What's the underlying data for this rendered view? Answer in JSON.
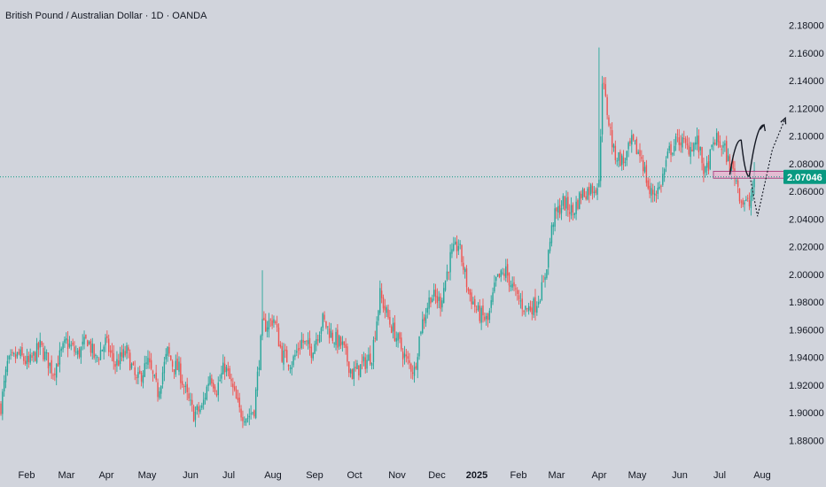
{
  "header": {
    "symbol_title": "British Pound / Australian Dollar · 1D · OANDA"
  },
  "colors": {
    "background": "#d1d4dc",
    "up_candle": "#26a69a",
    "down_candle": "#ef5350",
    "last_price": "#089981",
    "zone_fill": "#e8b4cf",
    "zone_border": "#b04a86",
    "arrow": "#131722"
  },
  "chart_data": {
    "type": "candlestick",
    "y_axis": {
      "min": 1.87,
      "max": 2.19,
      "ticks": [
        "2.18000",
        "2.16000",
        "2.14000",
        "2.12000",
        "2.10000",
        "2.08000",
        "2.06000",
        "2.04000",
        "2.02000",
        "2.00000",
        "1.98000",
        "1.96000",
        "1.94000",
        "1.92000",
        "1.90000",
        "1.88000"
      ]
    },
    "x_axis": {
      "ticks": [
        {
          "label": "Feb",
          "bold": false
        },
        {
          "label": "Mar",
          "bold": false
        },
        {
          "label": "Apr",
          "bold": false
        },
        {
          "label": "May",
          "bold": false
        },
        {
          "label": "Jun",
          "bold": false
        },
        {
          "label": "Jul",
          "bold": false
        },
        {
          "label": "Aug",
          "bold": false
        },
        {
          "label": "Sep",
          "bold": false
        },
        {
          "label": "Oct",
          "bold": false
        },
        {
          "label": "Nov",
          "bold": false
        },
        {
          "label": "Dec",
          "bold": false
        },
        {
          "label": "2025",
          "bold": true
        },
        {
          "label": "Feb",
          "bold": false
        },
        {
          "label": "Mar",
          "bold": false
        },
        {
          "label": "Apr",
          "bold": false
        },
        {
          "label": "May",
          "bold": false
        },
        {
          "label": "Jun",
          "bold": false
        },
        {
          "label": "Jul",
          "bold": false
        },
        {
          "label": "Aug",
          "bold": false
        }
      ]
    },
    "last_price": 2.07046,
    "last_price_label": "2.07046",
    "close_path": [
      [
        0,
        1.905
      ],
      [
        4,
        1.935
      ],
      [
        11,
        1.942
      ],
      [
        17,
        1.935
      ],
      [
        24,
        1.948
      ],
      [
        32,
        1.93
      ],
      [
        40,
        1.951
      ],
      [
        47,
        1.942
      ],
      [
        53,
        1.953
      ],
      [
        58,
        1.938
      ],
      [
        64,
        1.951
      ],
      [
        70,
        1.935
      ],
      [
        77,
        1.944
      ],
      [
        83,
        1.922
      ],
      [
        90,
        1.936
      ],
      [
        96,
        1.915
      ],
      [
        102,
        1.944
      ],
      [
        105,
        1.935
      ],
      [
        109,
        1.931
      ],
      [
        114,
        1.911
      ],
      [
        118,
        1.899
      ],
      [
        123,
        1.903
      ],
      [
        128,
        1.928
      ],
      [
        132,
        1.917
      ],
      [
        137,
        1.934
      ],
      [
        141,
        1.92
      ],
      [
        146,
        1.901
      ],
      [
        151,
        1.897
      ],
      [
        155,
        1.903
      ],
      [
        160,
        1.962
      ],
      [
        164,
        1.965
      ],
      [
        167,
        1.968
      ],
      [
        172,
        1.942
      ],
      [
        178,
        1.936
      ],
      [
        184,
        1.952
      ],
      [
        190,
        1.945
      ],
      [
        197,
        1.967
      ],
      [
        203,
        1.955
      ],
      [
        209,
        1.948
      ],
      [
        215,
        1.928
      ],
      [
        221,
        1.934
      ],
      [
        227,
        1.942
      ],
      [
        232,
        1.985
      ],
      [
        238,
        1.965
      ],
      [
        243,
        1.952
      ],
      [
        248,
        1.938
      ],
      [
        253,
        1.93
      ],
      [
        257,
        1.962
      ],
      [
        263,
        1.985
      ],
      [
        269,
        1.98
      ],
      [
        275,
        2.012
      ],
      [
        280,
        2.022
      ],
      [
        286,
        1.988
      ],
      [
        292,
        1.972
      ],
      [
        298,
        1.966
      ],
      [
        303,
        1.995
      ],
      [
        309,
        2.002
      ],
      [
        315,
        1.985
      ],
      [
        321,
        1.975
      ],
      [
        327,
        1.978
      ],
      [
        332,
        1.992
      ],
      [
        338,
        2.04
      ],
      [
        344,
        2.052
      ],
      [
        350,
        2.045
      ],
      [
        355,
        2.058
      ],
      [
        361,
        2.062
      ],
      [
        366,
        2.065
      ],
      [
        368,
        2.142
      ],
      [
        370,
        2.125
      ],
      [
        375,
        2.088
      ],
      [
        381,
        2.081
      ],
      [
        386,
        2.095
      ],
      [
        392,
        2.085
      ],
      [
        397,
        2.058
      ],
      [
        403,
        2.062
      ],
      [
        409,
        2.089
      ],
      [
        415,
        2.098
      ],
      [
        420,
        2.091
      ],
      [
        426,
        2.096
      ],
      [
        431,
        2.072
      ],
      [
        437,
        2.098
      ],
      [
        443,
        2.09
      ],
      [
        446,
        2.078
      ],
      [
        449,
        2.073
      ],
      [
        453,
        2.054
      ],
      [
        458,
        2.05
      ],
      [
        461,
        2.07
      ]
    ],
    "drawings": {
      "zone": {
        "top": 2.0745,
        "bottom": 2.0695,
        "from_index": 436,
        "to_index": 482
      },
      "solid_arrow": [
        [
          446,
          2.072
        ],
        [
          453,
          2.097
        ],
        [
          458,
          2.071
        ],
        [
          467,
          2.108
        ]
      ],
      "dotted_arrow": [
        [
          458,
          2.073
        ],
        [
          463,
          2.042
        ],
        [
          472,
          2.09
        ],
        [
          480,
          2.113
        ]
      ]
    }
  }
}
